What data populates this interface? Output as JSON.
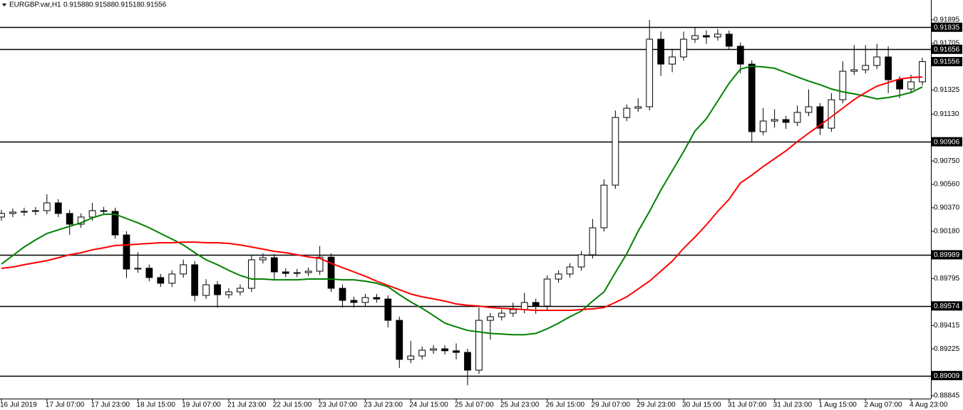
{
  "chart_data": {
    "type": "candlestick",
    "title": "EURGBP.var,H1",
    "header_values": [
      0.91588,
      0.91588,
      0.91518,
      0.91556
    ],
    "categories": [
      "16 Jul 2019",
      null,
      null,
      null,
      "17 Jul 07:00",
      null,
      null,
      null,
      "17 Jul 23:00",
      null,
      null,
      null,
      "18 Jul 15:00",
      null,
      null,
      null,
      "19 Jul 07:00",
      null,
      null,
      null,
      "21 Jul 23:00",
      null,
      null,
      null,
      "22 Jul 15:00",
      null,
      null,
      null,
      "23 Jul 07:00",
      null,
      null,
      null,
      "23 Jul 23:00",
      null,
      null,
      null,
      "24 Jul 15:00",
      null,
      null,
      null,
      "25 Jul 07:00",
      null,
      null,
      null,
      "25 Jul 23:00",
      null,
      null,
      null,
      "26 Jul 15:00",
      null,
      null,
      null,
      "29 Jul 07:00",
      null,
      null,
      null,
      "29 Jul 23:00",
      null,
      null,
      null,
      "30 Jul 15:00",
      null,
      null,
      null,
      "31 Jul 07:00",
      null,
      null,
      null,
      "31 Jul 23:00",
      null,
      null,
      null,
      "1 Aug 15:00",
      null,
      null,
      null,
      "2 Aug 07:00",
      null,
      null,
      null,
      "4 Aug 23:00",
      null
    ],
    "open": [
      0.90295,
      0.90324,
      0.90335,
      0.90341,
      0.90347,
      0.9041,
      0.90324,
      0.90237,
      0.90295,
      0.90347,
      0.90341,
      0.9015,
      0.89873,
      0.8988,
      0.89804,
      0.89758,
      0.89833,
      0.89908,
      0.89659,
      0.89746,
      0.89665,
      0.89688,
      0.89717,
      0.89948,
      0.89965,
      0.8985,
      0.89838,
      0.89844,
      0.89856,
      0.8997,
      0.89717,
      0.89619,
      0.89602,
      0.89642,
      0.8963,
      0.89457,
      0.8914,
      0.89168,
      0.89215,
      0.89226,
      0.8921,
      0.89197,
      0.89053,
      0.89457,
      0.89486,
      0.89515,
      0.89544,
      0.89602,
      0.89573,
      0.89792,
      0.89833,
      0.8989,
      0.89989,
      0.90208,
      0.90554,
      0.91103,
      0.91178,
      0.9119,
      0.91738,
      0.91536,
      0.91594,
      0.91738,
      0.91767,
      0.91756,
      0.91779,
      0.91681,
      0.91536,
      0.90988,
      0.91074,
      0.91086,
      0.91063,
      0.91144,
      0.9119,
      0.91016,
      0.91247,
      0.91478,
      0.9149,
      0.91525,
      0.91594,
      0.91409,
      0.91334,
      0.91392
    ],
    "high": [
      0.90354,
      0.90365,
      0.90371,
      0.90377,
      0.9048,
      0.9044,
      0.90354,
      0.90325,
      0.9041,
      0.90377,
      0.90371,
      0.9018,
      0.9001,
      0.8991,
      0.89834,
      0.89863,
      0.8995,
      0.89938,
      0.8979,
      0.89776,
      0.89718,
      0.89747,
      0.8999,
      0.9,
      0.89995,
      0.8988,
      0.89874,
      0.89886,
      0.9006,
      0.9,
      0.89747,
      0.89649,
      0.89672,
      0.89672,
      0.8966,
      0.89487,
      0.8929,
      0.89245,
      0.89256,
      0.89256,
      0.8927,
      0.89227,
      0.8956,
      0.89516,
      0.89545,
      0.896,
      0.8968,
      0.89632,
      0.89822,
      0.89863,
      0.8992,
      0.90019,
      0.9028,
      0.906,
      0.9116,
      0.91208,
      0.9126,
      0.91894,
      0.918,
      0.9166,
      0.918,
      0.9183,
      0.9181,
      0.9182,
      0.91809,
      0.91711,
      0.91566,
      0.9118,
      0.9117,
      0.91116,
      0.912,
      0.9133,
      0.9122,
      0.913,
      0.9156,
      0.9169,
      0.9169,
      0.917,
      0.9168,
      0.91439,
      0.9145,
      0.91588
    ],
    "low": [
      0.90265,
      0.90294,
      0.90305,
      0.90311,
      0.90317,
      0.90294,
      0.9015,
      0.90207,
      0.90265,
      0.90311,
      0.9012,
      0.898,
      0.89843,
      0.89774,
      0.89728,
      0.89728,
      0.89803,
      0.8961,
      0.89629,
      0.8956,
      0.89635,
      0.89658,
      0.89687,
      0.89918,
      0.8978,
      0.89808,
      0.89808,
      0.89814,
      0.89826,
      0.89687,
      0.8956,
      0.8956,
      0.89572,
      0.896,
      0.894,
      0.8907,
      0.8911,
      0.89138,
      0.89185,
      0.8918,
      0.8914,
      0.8893,
      0.89023,
      0.893,
      0.89456,
      0.89485,
      0.89514,
      0.8951,
      0.89543,
      0.89762,
      0.89803,
      0.8986,
      0.89959,
      0.90178,
      0.90524,
      0.91073,
      0.91148,
      0.9116,
      0.9144,
      0.9147,
      0.91564,
      0.91708,
      0.917,
      0.91726,
      0.91651,
      0.9146,
      0.909,
      0.90958,
      0.9102,
      0.9101,
      0.91033,
      0.91114,
      0.9096,
      0.90986,
      0.91217,
      0.91448,
      0.9146,
      0.91495,
      0.913,
      0.9126,
      0.91304,
      0.91362
    ],
    "close": [
      0.90324,
      0.90335,
      0.90341,
      0.90347,
      0.9041,
      0.90324,
      0.90237,
      0.90295,
      0.90347,
      0.90341,
      0.9015,
      0.89873,
      0.8988,
      0.89804,
      0.89758,
      0.89833,
      0.89908,
      0.89659,
      0.89746,
      0.89665,
      0.89688,
      0.89717,
      0.89948,
      0.89965,
      0.8985,
      0.89838,
      0.89844,
      0.89856,
      0.8997,
      0.89717,
      0.89619,
      0.89602,
      0.89642,
      0.8963,
      0.89457,
      0.8914,
      0.89168,
      0.89215,
      0.89226,
      0.8921,
      0.89197,
      0.89053,
      0.89457,
      0.89486,
      0.89515,
      0.89544,
      0.89602,
      0.89573,
      0.89792,
      0.89833,
      0.8989,
      0.89989,
      0.90208,
      0.90554,
      0.91103,
      0.91178,
      0.9119,
      0.91738,
      0.91536,
      0.91594,
      0.91738,
      0.91767,
      0.91756,
      0.91779,
      0.91681,
      0.91536,
      0.90988,
      0.91074,
      0.91086,
      0.91063,
      0.91144,
      0.9119,
      0.91016,
      0.91247,
      0.91478,
      0.9149,
      0.91525,
      0.91594,
      0.91409,
      0.91334,
      0.91392,
      0.91556
    ],
    "series": [
      {
        "color": "#008000",
        "values": [
          0.89914,
          0.89983,
          0.90052,
          0.9011,
          0.90162,
          0.90191,
          0.9022,
          0.90248,
          0.90289,
          0.90318,
          0.90318,
          0.90283,
          0.90248,
          0.90208,
          0.90162,
          0.90116,
          0.90069,
          0.90006,
          0.89948,
          0.89908,
          0.89862,
          0.89821,
          0.89792,
          0.89792,
          0.89786,
          0.89786,
          0.89786,
          0.89792,
          0.89792,
          0.89792,
          0.89786,
          0.89786,
          0.89775,
          0.89758,
          0.89729,
          0.89665,
          0.89607,
          0.89555,
          0.89496,
          0.89434,
          0.89404,
          0.89375,
          0.89363,
          0.89351,
          0.89346,
          0.8934,
          0.8934,
          0.89351,
          0.89388,
          0.89434,
          0.89486,
          0.89532,
          0.89613,
          0.89688,
          0.89844,
          0.89998,
          0.90179,
          0.90341,
          0.90514,
          0.9067,
          0.90826,
          0.90993,
          0.91092,
          0.91236,
          0.9138,
          0.91496,
          0.91519,
          0.91513,
          0.91502,
          0.91467,
          0.91432,
          0.91398,
          0.91369,
          0.91334,
          0.91311,
          0.91294,
          0.91276,
          0.91253,
          0.91265,
          0.91282,
          0.91305,
          0.91351
        ]
      },
      {
        "color": "#ff0000",
        "values": [
          0.89879,
          0.8989,
          0.89908,
          0.89925,
          0.89942,
          0.89965,
          0.89989,
          0.90006,
          0.90029,
          0.90046,
          0.90064,
          0.90069,
          0.90075,
          0.90081,
          0.90087,
          0.90087,
          0.90092,
          0.90092,
          0.90087,
          0.90087,
          0.90081,
          0.90069,
          0.90052,
          0.90035,
          0.90017,
          0.90006,
          0.89989,
          0.89971,
          0.8996,
          0.89919,
          0.89885,
          0.8985,
          0.89815,
          0.89775,
          0.8974,
          0.89706,
          0.89671,
          0.89648,
          0.89631,
          0.89613,
          0.8959,
          0.89579,
          0.89573,
          0.89561,
          0.89555,
          0.8955,
          0.89544,
          0.89538,
          0.89538,
          0.89538,
          0.89538,
          0.89544,
          0.8955,
          0.89561,
          0.89602,
          0.89648,
          0.89711,
          0.89775,
          0.89856,
          0.89937,
          0.90041,
          0.90133,
          0.90231,
          0.90341,
          0.90439,
          0.90572,
          0.90635,
          0.90705,
          0.90768,
          0.90832,
          0.90907,
          0.90976,
          0.9104,
          0.91109,
          0.91178,
          0.91248,
          0.91305,
          0.91357,
          0.91386,
          0.91415,
          0.91427,
          0.91432
        ]
      }
    ],
    "levels": [
      0.91835,
      0.91656,
      0.90906,
      0.89989,
      0.89574,
      0.89009
    ],
    "last_price": 0.91556,
    "ylim": [
      0.88822,
      0.92056
    ],
    "yticks": [
      0.91895,
      0.91705,
      0.91325,
      {
        "value": 0.9113,
        "label": "0.91130"
      },
      {
        "value": 0.9075,
        "label": "0.90750"
      },
      {
        "value": 0.9056,
        "label": "0.90560"
      },
      {
        "value": 0.9037,
        "label": "0.90370"
      },
      {
        "value": 0.9018,
        "label": "0.90180"
      },
      0.89795,
      0.89415,
      0.89225,
      0.88845
    ]
  }
}
